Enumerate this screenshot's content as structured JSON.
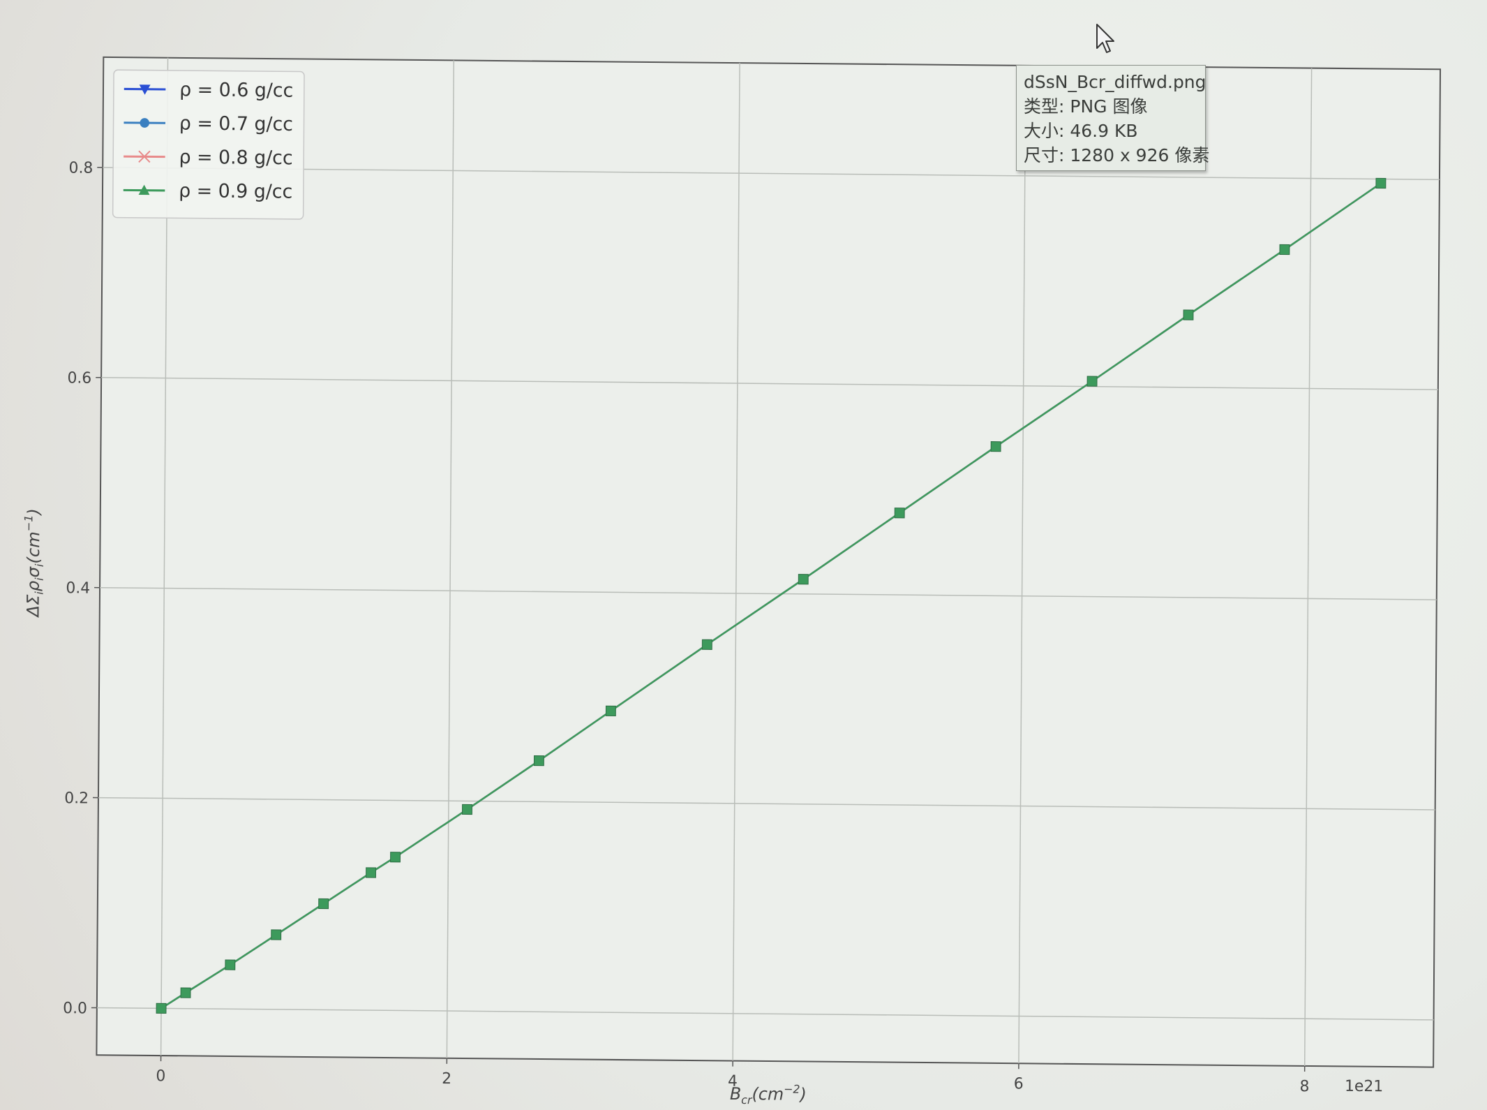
{
  "tooltip": {
    "filename": "dSsN_Bcr_diffwd.png",
    "type_line": "类型: PNG 图像",
    "size_line": "大小: 46.9 KB",
    "dimensions_line": "尺寸: 1280 x 926 像素"
  },
  "chart_data": {
    "type": "line",
    "title": "",
    "xlabel": "B_cr(cm^-2)",
    "ylabel": "ΔΣ_i ρ_i σ_i (cm^-1)",
    "x_offset_text": "1e21",
    "xlim": [
      -0.45,
      8.9
    ],
    "ylim": [
      -0.045,
      0.905
    ],
    "xticks": [
      0,
      2,
      4,
      6,
      8
    ],
    "yticks": [
      0.0,
      0.2,
      0.4,
      0.6,
      0.8
    ],
    "grid": true,
    "legend_position": "upper-left",
    "x": [
      0.0,
      0.17,
      0.48,
      0.8,
      1.13,
      1.46,
      1.63,
      2.13,
      2.63,
      3.13,
      3.8,
      4.47,
      5.14,
      5.81,
      6.48,
      7.15,
      7.82,
      8.49
    ],
    "series": [
      {
        "name": "ρ = 0.6 g/cc",
        "marker": "triangle-down",
        "color": "#2a4fd4",
        "values": [
          0.0,
          0.015,
          0.042,
          0.071,
          0.101,
          0.131,
          0.146,
          0.192,
          0.239,
          0.287,
          0.351,
          0.414,
          0.478,
          0.542,
          0.605,
          0.669,
          0.732,
          0.796
        ]
      },
      {
        "name": "ρ = 0.7 g/cc",
        "marker": "circle",
        "color": "#3a7fc0",
        "values": [
          0.0,
          0.015,
          0.042,
          0.071,
          0.101,
          0.131,
          0.146,
          0.192,
          0.239,
          0.287,
          0.351,
          0.414,
          0.478,
          0.542,
          0.605,
          0.669,
          0.732,
          0.796
        ]
      },
      {
        "name": "ρ = 0.8 g/cc",
        "marker": "x",
        "color": "#e88a8a",
        "values": [
          0.0,
          0.015,
          0.042,
          0.071,
          0.101,
          0.131,
          0.146,
          0.192,
          0.239,
          0.287,
          0.351,
          0.414,
          0.478,
          0.542,
          0.605,
          0.669,
          0.732,
          0.796
        ]
      },
      {
        "name": "ρ = 0.9 g/cc",
        "marker": "triangle-up",
        "color": "#3d9a5c",
        "values": [
          0.0,
          0.015,
          0.042,
          0.071,
          0.101,
          0.131,
          0.146,
          0.192,
          0.239,
          0.287,
          0.351,
          0.414,
          0.478,
          0.542,
          0.605,
          0.669,
          0.732,
          0.796
        ]
      }
    ],
    "square_marker_color": "#3d9a5c"
  }
}
